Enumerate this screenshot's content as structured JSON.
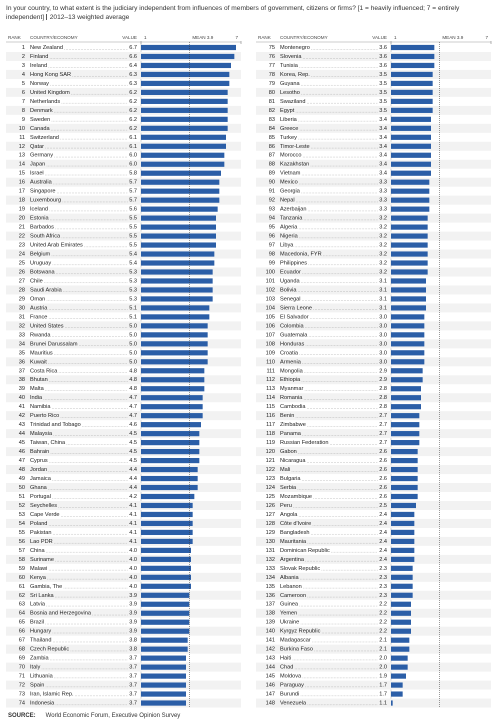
{
  "chart_data": {
    "type": "bar",
    "title": "In your country, to what extent is the judiciary independent from influences of members of government, citizens or firms? [1 = heavily influenced; 7 = entirely independent]",
    "subtitle": "2012–13 weighted average",
    "columns": [
      "RANK",
      "COUNTRY/ECONOMY",
      "VALUE"
    ],
    "mean": {
      "value": 3.9,
      "label": "MEAN 3.9"
    },
    "xlim": [
      1,
      7
    ],
    "xticks": [
      1,
      7
    ],
    "color": "#2b5ea7",
    "ranks": [
      1,
      2,
      3,
      4,
      5,
      6,
      7,
      8,
      9,
      10,
      11,
      12,
      13,
      14,
      15,
      16,
      17,
      18,
      19,
      20,
      21,
      22,
      23,
      24,
      25,
      26,
      27,
      28,
      29,
      30,
      31,
      32,
      33,
      34,
      35,
      36,
      37,
      38,
      39,
      40,
      41,
      42,
      43,
      44,
      45,
      46,
      47,
      48,
      49,
      50,
      51,
      52,
      53,
      54,
      55,
      56,
      57,
      58,
      59,
      60,
      61,
      62,
      63,
      64,
      65,
      66,
      67,
      68,
      69,
      70,
      71,
      72,
      73,
      74,
      75,
      76,
      77,
      78,
      79,
      80,
      81,
      82,
      83,
      84,
      85,
      86,
      87,
      88,
      89,
      90,
      91,
      92,
      93,
      94,
      95,
      96,
      97,
      98,
      99,
      100,
      101,
      102,
      103,
      104,
      105,
      106,
      107,
      108,
      109,
      110,
      111,
      112,
      113,
      114,
      115,
      116,
      117,
      118,
      119,
      120,
      121,
      122,
      123,
      124,
      125,
      126,
      127,
      128,
      129,
      130,
      131,
      132,
      133,
      134,
      135,
      136,
      137,
      138,
      139,
      140,
      141,
      142,
      143,
      144,
      145,
      146,
      147,
      148
    ],
    "categories": [
      "New Zealand",
      "Finland",
      "Ireland",
      "Hong Kong SAR",
      "Norway",
      "United Kingdom",
      "Netherlands",
      "Denmark",
      "Sweden",
      "Canada",
      "Switzerland",
      "Qatar",
      "Germany",
      "Japan",
      "Israel",
      "Australia",
      "Singapore",
      "Luxembourg",
      "Iceland",
      "Estonia",
      "Barbados",
      "South Africa",
      "United Arab Emirates",
      "Belgium",
      "Uruguay",
      "Botswana",
      "Chile",
      "Saudi Arabia",
      "Oman",
      "Austria",
      "France",
      "United States",
      "Rwanda",
      "Brunei Darussalam",
      "Mauritius",
      "Kuwait",
      "Costa Rica",
      "Bhutan",
      "Malta",
      "India",
      "Namibia",
      "Puerto Rico",
      "Trinidad and Tobago",
      "Malaysia",
      "Taiwan, China",
      "Bahrain",
      "Cyprus",
      "Jordan",
      "Jamaica",
      "Ghana",
      "Portugal",
      "Seychelles",
      "Cape Verde",
      "Poland",
      "Pakistan",
      "Lao PDR",
      "China",
      "Suriname",
      "Malawi",
      "Kenya",
      "Gambia, The",
      "Sri Lanka",
      "Latvia",
      "Bosnia and Herzegovina",
      "Brazil",
      "Hungary",
      "Thailand",
      "Czech Republic",
      "Zambia",
      "Italy",
      "Lithuania",
      "Spain",
      "Iran, Islamic Rep.",
      "Indonesia",
      "Montenegro",
      "Slovenia",
      "Tunisia",
      "Korea, Rep.",
      "Guyana",
      "Lesotho",
      "Swaziland",
      "Egypt",
      "Liberia",
      "Greece",
      "Turkey",
      "Timor-Leste",
      "Morocco",
      "Kazakhstan",
      "Vietnam",
      "Mexico",
      "Georgia",
      "Nepal",
      "Azerbaijan",
      "Tanzania",
      "Algeria",
      "Nigeria",
      "Libya",
      "Macedonia, FYR",
      "Philippines",
      "Ecuador",
      "Uganda",
      "Bolivia",
      "Senegal",
      "Sierra Leone",
      "El Salvador",
      "Colombia",
      "Guatemala",
      "Honduras",
      "Croatia",
      "Armenia",
      "Mongolia",
      "Ethiopia",
      "Myanmar",
      "Romania",
      "Cambodia",
      "Benin",
      "Zimbabwe",
      "Panama",
      "Russian Federation",
      "Gabon",
      "Nicaragua",
      "Mali",
      "Bulgaria",
      "Serbia",
      "Mozambique",
      "Peru",
      "Angola",
      "Côte d'Ivoire",
      "Bangladesh",
      "Mauritania",
      "Dominican Republic",
      "Argentina",
      "Slovak Republic",
      "Albania",
      "Lebanon",
      "Cameroon",
      "Guinea",
      "Yemen",
      "Ukraine",
      "Kyrgyz Republic",
      "Madagascar",
      "Burkina Faso",
      "Haiti",
      "Chad",
      "Moldova",
      "Paraguay",
      "Burundi",
      "Venezuela"
    ],
    "values": [
      6.7,
      6.6,
      6.4,
      6.3,
      6.3,
      6.2,
      6.2,
      6.2,
      6.2,
      6.2,
      6.1,
      6.1,
      6.0,
      6.0,
      5.8,
      5.7,
      5.7,
      5.7,
      5.6,
      5.5,
      5.5,
      5.5,
      5.5,
      5.4,
      5.4,
      5.3,
      5.3,
      5.3,
      5.3,
      5.1,
      5.1,
      5.0,
      5.0,
      5.0,
      5.0,
      5.0,
      4.8,
      4.8,
      4.8,
      4.7,
      4.7,
      4.7,
      4.6,
      4.5,
      4.5,
      4.5,
      4.5,
      4.4,
      4.4,
      4.4,
      4.2,
      4.1,
      4.1,
      4.1,
      4.1,
      4.1,
      4.0,
      4.0,
      4.0,
      4.0,
      4.0,
      3.9,
      3.9,
      3.9,
      3.9,
      3.9,
      3.8,
      3.8,
      3.7,
      3.7,
      3.7,
      3.7,
      3.7,
      3.7,
      3.6,
      3.6,
      3.6,
      3.5,
      3.5,
      3.5,
      3.5,
      3.5,
      3.4,
      3.4,
      3.4,
      3.4,
      3.4,
      3.4,
      3.4,
      3.3,
      3.3,
      3.3,
      3.3,
      3.2,
      3.2,
      3.2,
      3.2,
      3.2,
      3.2,
      3.2,
      3.1,
      3.1,
      3.1,
      3.1,
      3.0,
      3.0,
      3.0,
      3.0,
      3.0,
      3.0,
      2.9,
      2.9,
      2.8,
      2.8,
      2.8,
      2.7,
      2.7,
      2.7,
      2.7,
      2.6,
      2.6,
      2.6,
      2.6,
      2.6,
      2.6,
      2.5,
      2.4,
      2.4,
      2.4,
      2.4,
      2.4,
      2.4,
      2.3,
      2.3,
      2.3,
      2.3,
      2.2,
      2.2,
      2.2,
      2.2,
      2.1,
      2.1,
      2.0,
      2.0,
      1.9,
      1.7,
      1.7,
      1.1
    ],
    "value_labels": [
      "6.7",
      "6.6",
      "6.4",
      "6.3",
      "6.3",
      "6.2",
      "6.2",
      "6.2",
      "6.2",
      "6.2",
      "6.1",
      "6.1",
      "6.0",
      "6.0",
      "5.8",
      "5.7",
      "5.7",
      "5.7",
      "5.6",
      "5.5",
      "5.5",
      "5.5",
      "5.5",
      "5.4",
      "5.4",
      "5.3",
      "5.3",
      "5.3",
      "5.3",
      "5.1",
      "5.1",
      "5.0",
      "5.0",
      "5.0",
      "5.0",
      "5.0",
      "4.8",
      "4.8",
      "4.8",
      "4.7",
      "4.7",
      "4.7",
      "4.6",
      "4.5",
      "4.5",
      "4.5",
      "4.5",
      "4.4",
      "4.4",
      "4.4",
      "4.2",
      "4.1",
      "4.1",
      "4.1",
      "4.1",
      "4.1",
      "4.0",
      "4.0",
      "4.0",
      "4.0",
      "4.0",
      "3.9",
      "3.9",
      "3.9",
      "3.9",
      "3.9",
      "3.8",
      "3.8",
      "3.7",
      "3.7",
      "3.7",
      "3.7",
      "3.7",
      "3.7",
      "3.6",
      "3.6",
      "3.6",
      "3.5",
      "3.5",
      "3.5",
      "3.5",
      "3.5",
      "3.4",
      "3.4",
      "3.4",
      "3.4",
      "3.4",
      "3.4",
      "3.4",
      "3.3",
      "3.3",
      "3.3",
      "3.3",
      "3.2",
      "3.2",
      "3.2",
      "3.2",
      "3.2",
      "3.2",
      "3.2",
      "3.1",
      "3.1",
      "3.1",
      "3.1",
      "3.0",
      "3.0",
      "3.0",
      "3.0",
      "3.0",
      "3.0",
      "2.9",
      "2.9",
      "2.8",
      "2.8",
      "2.8",
      "2.7",
      "2.7",
      "2.7",
      "2.7",
      "2.6",
      "2.6",
      "2.6",
      "2.6",
      "2.6",
      "2.6",
      "2.5",
      "2.4",
      "2.4",
      "2.4",
      "2.4",
      "2.4",
      "2.4",
      "2.3",
      "2.3",
      "2.3",
      "2.3",
      "2.2",
      "2.2",
      "2.2",
      "2.2",
      "2.1",
      "2.1",
      "2.0",
      "2.0",
      "1.9",
      "1.7",
      "1.7",
      "1.1"
    ],
    "source_label": "SOURCE:",
    "source": "World Economic Forum, Executive Opinion Survey"
  }
}
